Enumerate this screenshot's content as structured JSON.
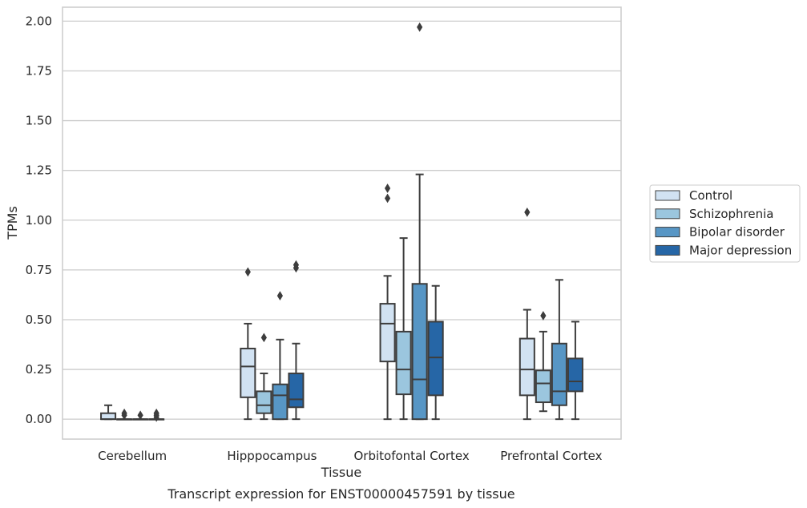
{
  "chart_data": {
    "type": "box",
    "caption": "Transcript expression for ENST00000457591 by tissue",
    "xlabel": "Tissue",
    "ylabel": "TPMs",
    "ylim": [
      -0.1,
      2.07
    ],
    "yticks": [
      0.0,
      0.25,
      0.5,
      0.75,
      1.0,
      1.25,
      1.5,
      1.75,
      2.0
    ],
    "ytick_labels": [
      "0.00",
      "0.25",
      "0.50",
      "0.75",
      "1.00",
      "1.25",
      "1.50",
      "1.75",
      "2.00"
    ],
    "grid": "horizontal",
    "legend_position": "right",
    "categories": [
      "Cerebellum",
      "Hipppocampus",
      "Orbitofontal Cortex",
      "Prefrontal Cortex"
    ],
    "series": [
      {
        "name": "Control",
        "color": "#d1e2f2",
        "boxes": [
          {
            "min": 0.0,
            "q1": 0.0,
            "median": 0.0,
            "q3": 0.03,
            "max": 0.07,
            "outliers": []
          },
          {
            "min": 0.0,
            "q1": 0.11,
            "median": 0.265,
            "q3": 0.355,
            "max": 0.48,
            "outliers": [
              0.74
            ]
          },
          {
            "min": 0.0,
            "q1": 0.29,
            "median": 0.48,
            "q3": 0.58,
            "max": 0.72,
            "outliers": [
              1.11,
              1.16
            ]
          },
          {
            "min": 0.0,
            "q1": 0.12,
            "median": 0.25,
            "q3": 0.405,
            "max": 0.55,
            "outliers": [
              1.04
            ]
          }
        ]
      },
      {
        "name": "Schizophrenia",
        "color": "#9bc6de",
        "boxes": [
          {
            "min": 0.0,
            "q1": 0.0,
            "median": 0.0,
            "q3": 0.0,
            "max": 0.0,
            "outliers": [
              0.02,
              0.03
            ]
          },
          {
            "min": 0.0,
            "q1": 0.03,
            "median": 0.07,
            "q3": 0.14,
            "max": 0.23,
            "outliers": [
              0.41
            ]
          },
          {
            "min": 0.0,
            "q1": 0.125,
            "median": 0.25,
            "q3": 0.44,
            "max": 0.91,
            "outliers": []
          },
          {
            "min": 0.04,
            "q1": 0.085,
            "median": 0.18,
            "q3": 0.245,
            "max": 0.44,
            "outliers": [
              0.52
            ]
          }
        ]
      },
      {
        "name": "Bipolar disorder",
        "color": "#5796c5",
        "boxes": [
          {
            "min": 0.0,
            "q1": 0.0,
            "median": 0.0,
            "q3": 0.0,
            "max": 0.0,
            "outliers": [
              0.02
            ]
          },
          {
            "min": 0.0,
            "q1": 0.0,
            "median": 0.12,
            "q3": 0.175,
            "max": 0.4,
            "outliers": [
              0.62
            ]
          },
          {
            "min": 0.0,
            "q1": 0.0,
            "median": 0.2,
            "q3": 0.68,
            "max": 1.23,
            "outliers": [
              1.97
            ]
          },
          {
            "min": 0.0,
            "q1": 0.07,
            "median": 0.14,
            "q3": 0.38,
            "max": 0.7,
            "outliers": []
          }
        ]
      },
      {
        "name": "Major depression",
        "color": "#2666a6",
        "boxes": [
          {
            "min": 0.0,
            "q1": 0.0,
            "median": 0.0,
            "q3": 0.0,
            "max": 0.0,
            "outliers": [
              0.01,
              0.02,
              0.03
            ]
          },
          {
            "min": 0.0,
            "q1": 0.06,
            "median": 0.1,
            "q3": 0.23,
            "max": 0.38,
            "outliers": [
              0.76,
              0.775
            ]
          },
          {
            "min": 0.0,
            "q1": 0.12,
            "median": 0.31,
            "q3": 0.49,
            "max": 0.67,
            "outliers": []
          },
          {
            "min": 0.0,
            "q1": 0.14,
            "median": 0.19,
            "q3": 0.305,
            "max": 0.49,
            "outliers": []
          }
        ]
      }
    ]
  }
}
